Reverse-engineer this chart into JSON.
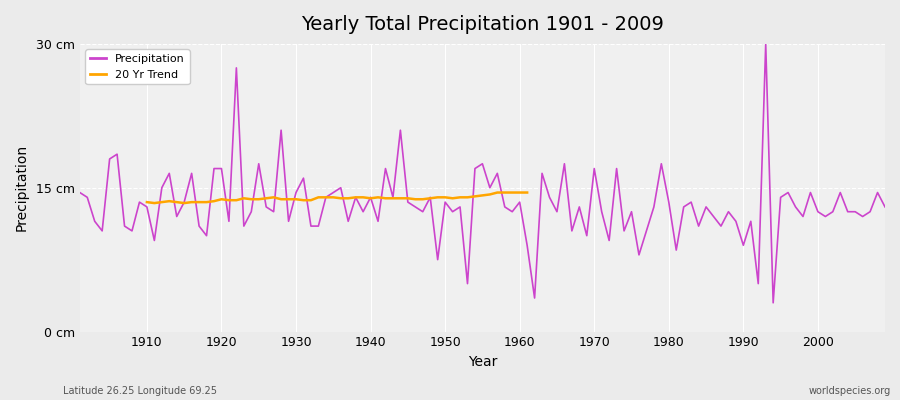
{
  "title": "Yearly Total Precipitation 1901 - 2009",
  "xlabel": "Year",
  "ylabel": "Precipitation",
  "ylabel_rotation": 90,
  "xlim": [
    1901,
    2009
  ],
  "ylim": [
    0,
    30
  ],
  "yticks": [
    0,
    15,
    30
  ],
  "ytick_labels": [
    "0 cm",
    "15 cm",
    "30 cm"
  ],
  "xticks": [
    1910,
    1920,
    1930,
    1940,
    1950,
    1960,
    1970,
    1980,
    1990,
    2000
  ],
  "background_color": "#ebebeb",
  "plot_bg_color": "#f0f0f0",
  "precip_color": "#cc44cc",
  "trend_color": "#ffa500",
  "grid_color": "#ffffff",
  "footnote_left": "Latitude 26.25 Longitude 69.25",
  "footnote_right": "worldspecies.org",
  "legend_items": [
    "Precipitation",
    "20 Yr Trend"
  ],
  "years": [
    1901,
    1902,
    1903,
    1904,
    1905,
    1906,
    1907,
    1908,
    1909,
    1910,
    1911,
    1912,
    1913,
    1914,
    1915,
    1916,
    1917,
    1918,
    1919,
    1920,
    1921,
    1922,
    1923,
    1924,
    1925,
    1926,
    1927,
    1928,
    1929,
    1930,
    1931,
    1932,
    1933,
    1934,
    1935,
    1936,
    1937,
    1938,
    1939,
    1940,
    1941,
    1942,
    1943,
    1944,
    1945,
    1946,
    1947,
    1948,
    1949,
    1950,
    1951,
    1952,
    1953,
    1954,
    1955,
    1956,
    1957,
    1958,
    1959,
    1960,
    1961,
    1962,
    1963,
    1964,
    1965,
    1966,
    1967,
    1968,
    1969,
    1970,
    1971,
    1972,
    1973,
    1974,
    1975,
    1976,
    1977,
    1978,
    1979,
    1980,
    1981,
    1982,
    1983,
    1984,
    1985,
    1986,
    1987,
    1988,
    1989,
    1990,
    1991,
    1992,
    1993,
    1994,
    1995,
    1996,
    1997,
    1998,
    1999,
    2000,
    2001,
    2002,
    2003,
    2004,
    2005,
    2006,
    2007,
    2008,
    2009
  ],
  "precip": [
    14.5,
    14.0,
    11.5,
    10.5,
    18.0,
    18.5,
    11.0,
    10.5,
    13.5,
    13.0,
    9.5,
    15.0,
    16.5,
    12.0,
    13.5,
    16.5,
    11.0,
    10.0,
    17.0,
    17.0,
    11.5,
    27.5,
    11.0,
    12.5,
    17.5,
    13.0,
    12.5,
    21.0,
    11.5,
    14.5,
    16.0,
    11.0,
    11.0,
    14.0,
    14.5,
    15.0,
    11.5,
    14.0,
    12.5,
    14.0,
    11.5,
    17.0,
    14.0,
    21.0,
    13.5,
    13.0,
    12.5,
    14.0,
    7.5,
    13.5,
    12.5,
    13.0,
    5.0,
    17.0,
    17.5,
    15.0,
    16.5,
    13.0,
    12.5,
    13.5,
    9.0,
    3.5,
    16.5,
    14.0,
    12.5,
    17.5,
    10.5,
    13.0,
    10.0,
    17.0,
    12.5,
    9.5,
    17.0,
    10.5,
    12.5,
    8.0,
    10.5,
    13.0,
    17.5,
    13.5,
    8.5,
    13.0,
    13.5,
    11.0,
    13.0,
    12.0,
    11.0,
    12.5,
    11.5,
    9.0,
    11.5,
    5.0,
    30.0,
    3.0,
    14.0,
    14.5,
    13.0,
    12.0,
    14.5,
    12.5,
    12.0,
    12.5,
    14.5,
    12.5,
    12.5,
    12.0,
    12.5,
    14.5,
    13.0
  ],
  "trend_years": [
    1910,
    1911,
    1912,
    1913,
    1914,
    1915,
    1916,
    1917,
    1918,
    1919,
    1920,
    1921,
    1922,
    1923,
    1924,
    1925,
    1926,
    1927,
    1928,
    1929,
    1930,
    1931,
    1932,
    1933,
    1934,
    1935,
    1936,
    1937,
    1938,
    1939,
    1940,
    1941,
    1942,
    1943,
    1944,
    1945,
    1946,
    1947,
    1948,
    1949,
    1950,
    1951,
    1952,
    1953,
    1954,
    1955,
    1956,
    1957,
    1958,
    1959,
    1960,
    1961
  ],
  "trend_vals": [
    13.5,
    13.4,
    13.5,
    13.6,
    13.5,
    13.4,
    13.5,
    13.5,
    13.5,
    13.6,
    13.8,
    13.7,
    13.7,
    13.9,
    13.8,
    13.8,
    13.9,
    14.0,
    13.8,
    13.8,
    13.8,
    13.7,
    13.7,
    14.0,
    14.0,
    14.0,
    13.9,
    13.9,
    14.0,
    14.0,
    13.9,
    14.0,
    13.9,
    13.9,
    13.9,
    13.9,
    13.8,
    13.8,
    13.9,
    14.0,
    14.0,
    13.9,
    14.0,
    14.0,
    14.1,
    14.2,
    14.3,
    14.5,
    14.5,
    14.5,
    14.5,
    14.5
  ]
}
